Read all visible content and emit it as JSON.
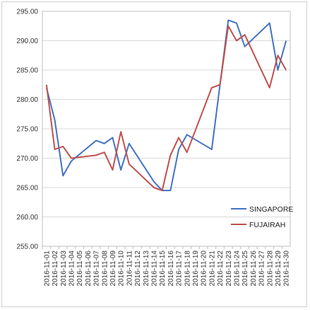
{
  "chart_data": {
    "type": "line",
    "title": "",
    "xlabel": "",
    "ylabel": "",
    "ylim": [
      255,
      295
    ],
    "yticks": [
      "295.00",
      "290.00",
      "285.00",
      "280.00",
      "275.00",
      "270.00",
      "265.00",
      "260.00",
      "255.00"
    ],
    "grid": "horizontal",
    "legend_position": "bottom-right",
    "categories": [
      "2016-11-01",
      "2016-11-02",
      "2016-11-03",
      "2016-11-04",
      "2016-11-05",
      "2016-11-06",
      "2016-11-07",
      "2016-11-08",
      "2016-11-09",
      "2016-11-10",
      "2016-11-11",
      "2016-11-12",
      "2016-11-13",
      "2016-11-14",
      "2016-11-15",
      "2016-11-16",
      "2016-11-17",
      "2016-11-18",
      "2016-11-19",
      "2016-11-20",
      "2016-11-21",
      "2016-11-22",
      "2016-11-23",
      "2016-11-24",
      "2016-11-25",
      "2016-11-26",
      "2016-11-27",
      "2016-11-28",
      "2016-11-29",
      "2016-11-30"
    ],
    "series": [
      {
        "name": "SINGAPORE",
        "color": "#4472c4",
        "points": [
          [
            "2016-11-01",
            282.0
          ],
          [
            "2016-11-02",
            276.5
          ],
          [
            "2016-11-03",
            267.0
          ],
          [
            "2016-11-04",
            269.5
          ],
          [
            "2016-11-07",
            273.0
          ],
          [
            "2016-11-08",
            272.5
          ],
          [
            "2016-11-09",
            273.5
          ],
          [
            "2016-11-10",
            268.0
          ],
          [
            "2016-11-11",
            272.5
          ],
          [
            "2016-11-14",
            266.0
          ],
          [
            "2016-11-15",
            264.5
          ],
          [
            "2016-11-16",
            264.5
          ],
          [
            "2016-11-17",
            271.5
          ],
          [
            "2016-11-18",
            274.0
          ],
          [
            "2016-11-21",
            271.5
          ],
          [
            "2016-11-22",
            282.5
          ],
          [
            "2016-11-23",
            293.5
          ],
          [
            "2016-11-24",
            293.0
          ],
          [
            "2016-11-25",
            289.0
          ],
          [
            "2016-11-28",
            293.0
          ],
          [
            "2016-11-29",
            285.0
          ],
          [
            "2016-11-30",
            290.0
          ]
        ]
      },
      {
        "name": "FUJAIRAH",
        "color": "#c0504d",
        "points": [
          [
            "2016-11-01",
            282.5
          ],
          [
            "2016-11-02",
            271.5
          ],
          [
            "2016-11-03",
            272.0
          ],
          [
            "2016-11-04",
            270.0
          ],
          [
            "2016-11-07",
            270.5
          ],
          [
            "2016-11-08",
            271.0
          ],
          [
            "2016-11-09",
            268.0
          ],
          [
            "2016-11-10",
            274.5
          ],
          [
            "2016-11-11",
            269.0
          ],
          [
            "2016-11-14",
            265.0
          ],
          [
            "2016-11-15",
            264.5
          ],
          [
            "2016-11-16",
            270.5
          ],
          [
            "2016-11-17",
            273.5
          ],
          [
            "2016-11-18",
            271.0
          ],
          [
            "2016-11-21",
            282.0
          ],
          [
            "2016-11-22",
            282.5
          ],
          [
            "2016-11-23",
            292.5
          ],
          [
            "2016-11-24",
            290.0
          ],
          [
            "2016-11-25",
            291.0
          ],
          [
            "2016-11-28",
            282.0
          ],
          [
            "2016-11-29",
            287.5
          ],
          [
            "2016-11-30",
            285.0
          ]
        ]
      }
    ]
  }
}
